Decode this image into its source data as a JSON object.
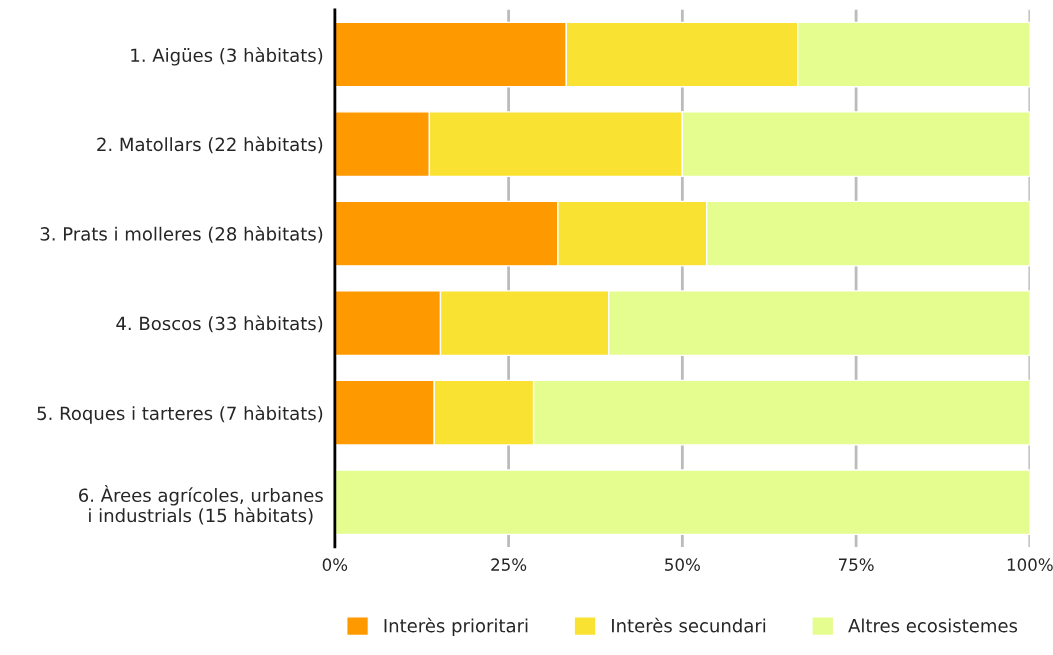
{
  "chart_data": {
    "type": "bar",
    "orientation": "horizontal",
    "stacked": true,
    "categories": [
      "1. Aigües (3 hàbitats)",
      "2. Matollars (22 hàbitats)",
      "3. Prats i molleres (28 hàbitats)",
      "4. Boscos (33 hàbitats)",
      "5. Roques i tarteres (7 hàbitats)",
      "6. Àrees agrícoles, urbanes\ni industrials (15 hàbitats)"
    ],
    "series": [
      {
        "name": "Interès prioritari",
        "color": "#ff9900",
        "values": [
          33.3,
          13.6,
          32.1,
          15.2,
          14.3,
          0
        ]
      },
      {
        "name": "Interès secundari",
        "color": "#f9e232",
        "values": [
          33.3,
          36.4,
          21.4,
          24.2,
          14.3,
          0
        ]
      },
      {
        "name": "Altres ecosistemes",
        "color": "#e5fc8f",
        "values": [
          33.4,
          50.0,
          46.5,
          60.6,
          71.4,
          100
        ]
      }
    ],
    "xlim": [
      0,
      100
    ],
    "xticks": [
      {
        "value": 0,
        "label": "0%"
      },
      {
        "value": 25,
        "label": "25%"
      },
      {
        "value": 50,
        "label": "50%"
      },
      {
        "value": 75,
        "label": "75%"
      },
      {
        "value": 100,
        "label": "100%"
      }
    ],
    "grid": "x",
    "legend": "bottom"
  }
}
